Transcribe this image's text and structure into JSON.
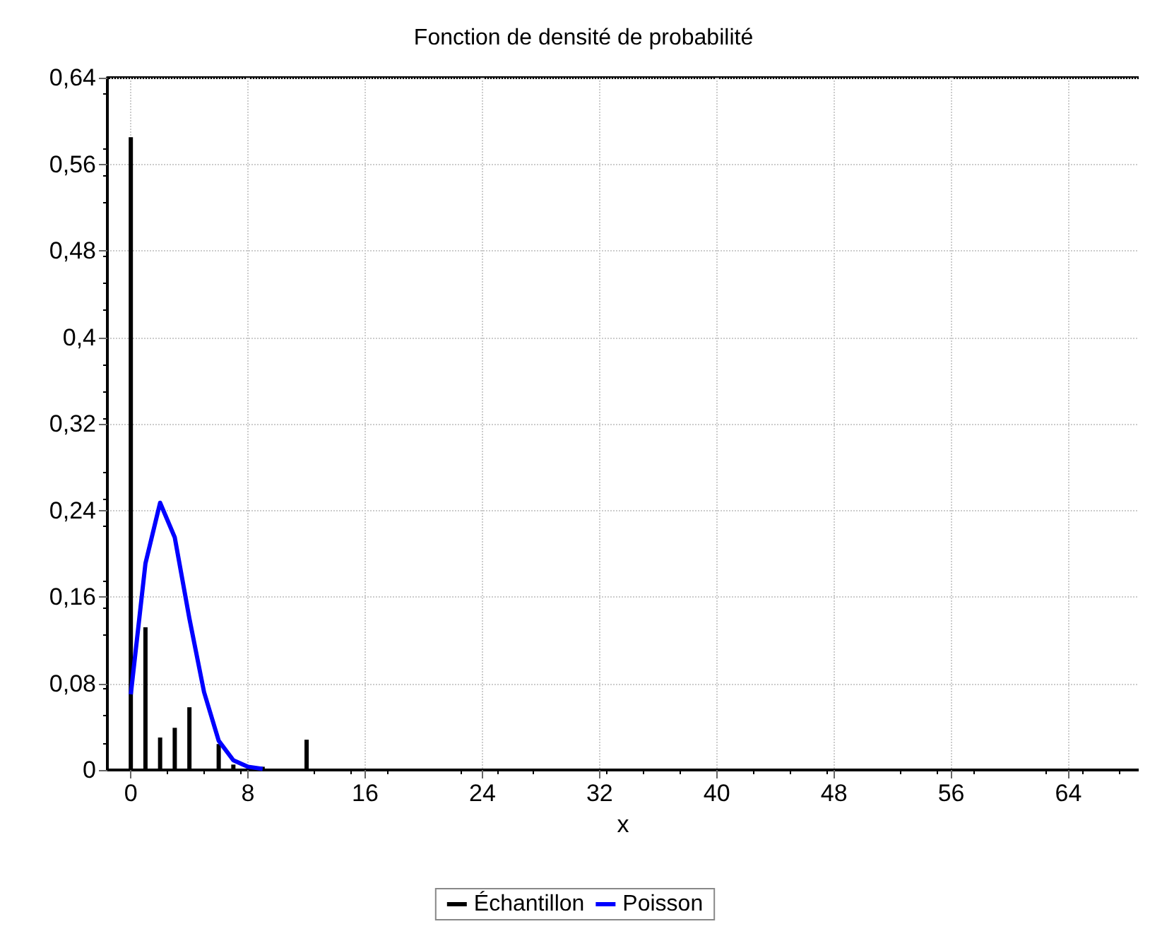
{
  "chart_data": {
    "type": "bar",
    "title": "Fonction de densité de probabilité",
    "xlabel": "x",
    "series": [
      {
        "name": "Échantillon",
        "color": "#000000",
        "x": [
          0,
          1,
          2,
          3,
          4,
          5,
          6,
          7,
          9,
          12,
          14,
          20,
          24,
          25
        ],
        "values": [
          0.585,
          0.132,
          0.03,
          0.039,
          0.058,
          0.001,
          0.024,
          0.005,
          0.003,
          0.028,
          0.001,
          0.001,
          0.001,
          0.001
        ]
      },
      {
        "name": "Poisson",
        "type": "line",
        "color": "#0000ff",
        "x": [
          0,
          1,
          2,
          3,
          4,
          5,
          6,
          7,
          8,
          9
        ],
        "values": [
          0.07,
          0.191,
          0.247,
          0.215,
          0.14,
          0.072,
          0.027,
          0.009,
          0.003,
          0.001
        ]
      }
    ],
    "xlim": [
      -1.6,
      68.8
    ],
    "xticks": [
      0,
      8,
      16,
      24,
      32,
      40,
      48,
      56,
      64
    ],
    "ylim": [
      0,
      0.64
    ],
    "yticks": [
      0,
      {
        "value": 0.08,
        "label": "0,08"
      },
      {
        "value": 0.16,
        "label": "0,16"
      },
      {
        "value": 0.24,
        "label": "0,24"
      },
      {
        "value": 0.32,
        "label": "0,32"
      },
      {
        "value": 0.4,
        "label": "0,4"
      },
      {
        "value": 0.48,
        "label": "0,48"
      },
      {
        "value": 0.56,
        "label": "0,56"
      },
      {
        "value": 0.64,
        "label": "0,64"
      }
    ],
    "grid": true,
    "legend": "bottom",
    "marker": "none",
    "line_style": "solid"
  }
}
